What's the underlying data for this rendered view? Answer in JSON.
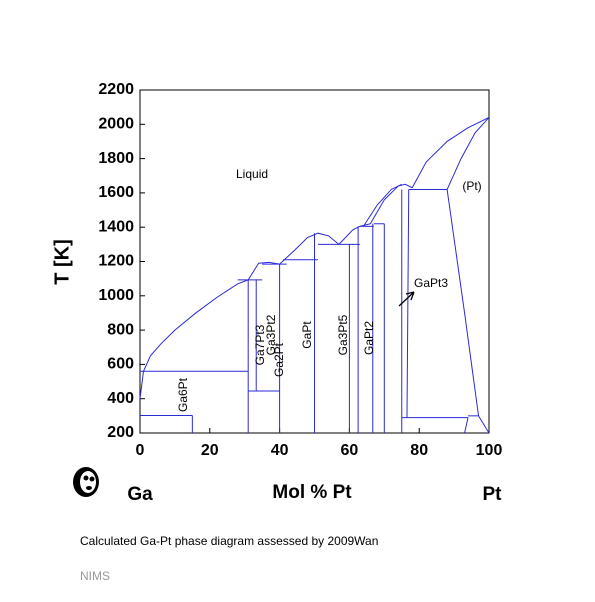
{
  "chart_data": {
    "type": "line",
    "ylabel": "T [K]",
    "xlabel": "Mol % Pt",
    "left_element": "Ga",
    "right_element": "Pt",
    "caption": "Calculated Ga-Pt phase diagram assessed by 2009Wan",
    "source": "NIMS",
    "xlim": [
      0,
      100
    ],
    "xticks": [
      0,
      20,
      40,
      60,
      80,
      100
    ],
    "ylim": [
      200,
      2200
    ],
    "yticks": [
      200,
      400,
      600,
      800,
      1000,
      1200,
      1400,
      1600,
      1800,
      2000,
      2200
    ],
    "color": "#2a2ad6",
    "annotations": [
      "Liquid",
      "(Pt)",
      "GaPt3",
      "Ga6Pt",
      "Ga7Pt3",
      "Ga2Pt",
      "Ga3Pt2",
      "GaPt",
      "Ga3Pt5",
      "GaPt2"
    ],
    "lines": [
      {
        "x": [
          0,
          1,
          3,
          6,
          10,
          16,
          22,
          28,
          31
        ],
        "y": [
          400,
          560,
          650,
          720,
          800,
          900,
          990,
          1070,
          1093
        ]
      },
      {
        "x": [
          31,
          34,
          37,
          40
        ],
        "y": [
          1093,
          1190,
          1195,
          1185
        ]
      },
      {
        "x": [
          40,
          44,
          48,
          51,
          54,
          57
        ],
        "y": [
          1185,
          1260,
          1340,
          1365,
          1350,
          1300
        ]
      },
      {
        "x": [
          57,
          61,
          63,
          66
        ],
        "y": [
          1300,
          1385,
          1405,
          1420
        ]
      },
      {
        "x": [
          66,
          70,
          74,
          76,
          78
        ],
        "y": [
          1420,
          1560,
          1640,
          1650,
          1630
        ]
      },
      {
        "x": [
          78,
          82,
          88,
          94,
          100
        ],
        "y": [
          1630,
          1780,
          1900,
          1980,
          2040
        ]
      },
      {
        "x": [
          64,
          68,
          72,
          75
        ],
        "y": [
          1405,
          1530,
          1620,
          1650
        ]
      },
      {
        "x": [
          88,
          92,
          96,
          100
        ],
        "y": [
          1620,
          1800,
          1950,
          2040
        ]
      },
      {
        "x": [
          88,
          93,
          97,
          100
        ],
        "y": [
          1620,
          900,
          300,
          200
        ]
      },
      {
        "x": [
          0,
          15
        ],
        "y": [
          302,
          302
        ]
      },
      {
        "x": [
          0,
          31
        ],
        "y": [
          560,
          560
        ]
      },
      {
        "x": [
          28,
          35
        ],
        "y": [
          1093,
          1093
        ]
      },
      {
        "x": [
          35,
          42
        ],
        "y": [
          1185,
          1185
        ]
      },
      {
        "x": [
          41,
          51
        ],
        "y": [
          1210,
          1210
        ]
      },
      {
        "x": [
          51,
          63
        ],
        "y": [
          1300,
          1300
        ]
      },
      {
        "x": [
          63,
          67
        ],
        "y": [
          1405,
          1405
        ]
      },
      {
        "x": [
          67,
          70
        ],
        "y": [
          1420,
          1420
        ]
      },
      {
        "x": [
          77,
          88
        ],
        "y": [
          1620,
          1620
        ]
      },
      {
        "x": [
          31,
          40
        ],
        "y": [
          445,
          445
        ]
      },
      {
        "x": [
          75,
          94
        ],
        "y": [
          290,
          290
        ]
      },
      {
        "x": [
          94,
          97
        ],
        "y": [
          300,
          300
        ]
      },
      {
        "x": [
          15,
          15
        ],
        "y": [
          200,
          302
        ]
      },
      {
        "x": [
          31,
          31
        ],
        "y": [
          200,
          1093
        ]
      },
      {
        "x": [
          33.3,
          33.3
        ],
        "y": [
          445,
          1093
        ]
      },
      {
        "x": [
          40,
          40
        ],
        "y": [
          200,
          1185
        ]
      },
      {
        "x": [
          50,
          50
        ],
        "y": [
          200,
          1365
        ]
      },
      {
        "x": [
          60,
          60
        ],
        "y": [
          200,
          1300
        ]
      },
      {
        "x": [
          62.5,
          62.5
        ],
        "y": [
          200,
          1405
        ]
      },
      {
        "x": [
          66.7,
          66.7
        ],
        "y": [
          200,
          1420
        ]
      },
      {
        "x": [
          70,
          70
        ],
        "y": [
          200,
          1420
        ]
      },
      {
        "x": [
          75,
          75
        ],
        "y": [
          200,
          1620
        ]
      },
      {
        "x": [
          76.5,
          77
        ],
        "y": [
          290,
          1620
        ]
      },
      {
        "x": [
          93,
          94
        ],
        "y": [
          200,
          290
        ]
      }
    ]
  }
}
